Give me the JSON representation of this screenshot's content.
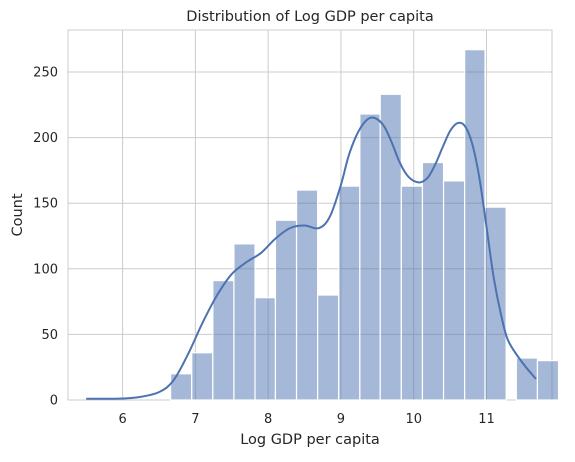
{
  "chart_data": {
    "type": "bar",
    "title": "Distribution of Log GDP per capita",
    "xlabel": "Log GDP per capita",
    "ylabel": "Count",
    "xlim": [
      5.25,
      11.9
    ],
    "ylim": [
      0,
      282
    ],
    "xticks": [
      6,
      7,
      8,
      9,
      10,
      11
    ],
    "yticks": [
      0,
      50,
      100,
      150,
      200,
      250
    ],
    "grid": true,
    "bar_color": "#4c72b0",
    "bar_alpha": 0.5,
    "kde_color": "#4c72b0",
    "bins": [
      {
        "x0": 6.66,
        "x1": 6.95,
        "count": 20
      },
      {
        "x0": 6.95,
        "x1": 7.24,
        "count": 36
      },
      {
        "x0": 7.24,
        "x1": 7.53,
        "count": 91
      },
      {
        "x0": 7.53,
        "x1": 7.82,
        "count": 119
      },
      {
        "x0": 7.82,
        "x1": 8.1,
        "count": 78
      },
      {
        "x0": 8.1,
        "x1": 8.39,
        "count": 137
      },
      {
        "x0": 8.39,
        "x1": 8.68,
        "count": 160
      },
      {
        "x0": 8.68,
        "x1": 8.97,
        "count": 80
      },
      {
        "x0": 8.97,
        "x1": 9.26,
        "count": 163
      },
      {
        "x0": 9.26,
        "x1": 9.54,
        "count": 218
      },
      {
        "x0": 9.54,
        "x1": 9.83,
        "count": 233
      },
      {
        "x0": 9.83,
        "x1": 10.12,
        "count": 163
      },
      {
        "x0": 10.12,
        "x1": 10.41,
        "count": 181
      },
      {
        "x0": 10.41,
        "x1": 10.7,
        "count": 167
      },
      {
        "x0": 10.7,
        "x1": 10.98,
        "count": 267
      },
      {
        "x0": 10.98,
        "x1": 11.27,
        "count": 147
      },
      {
        "x0": 11.27,
        "x1": 11.41,
        "count": 0
      },
      {
        "x0": 11.41,
        "x1": 11.7,
        "count": 32
      },
      {
        "x0": 11.7,
        "x1": 11.99,
        "count": 30
      }
    ],
    "kde": {
      "x": [
        5.5,
        5.9,
        6.2,
        6.5,
        6.7,
        6.9,
        7.1,
        7.3,
        7.5,
        7.7,
        7.9,
        8.1,
        8.3,
        8.5,
        8.7,
        8.85,
        9.0,
        9.1,
        9.2,
        9.3,
        9.4,
        9.5,
        9.6,
        9.7,
        9.8,
        9.9,
        10.0,
        10.1,
        10.2,
        10.3,
        10.4,
        10.5,
        10.6,
        10.7,
        10.8,
        10.9,
        11.0,
        11.1,
        11.2,
        11.3,
        11.5,
        11.68
      ],
      "y": [
        1,
        1,
        2,
        6,
        15,
        35,
        59,
        80,
        96,
        105,
        112,
        123,
        131,
        133,
        131,
        140,
        164,
        185,
        200,
        210,
        215,
        214,
        208,
        196,
        182,
        172,
        167,
        166,
        170,
        180,
        193,
        205,
        211,
        209,
        196,
        170,
        132,
        93,
        65,
        45,
        28,
        16
      ]
    }
  }
}
